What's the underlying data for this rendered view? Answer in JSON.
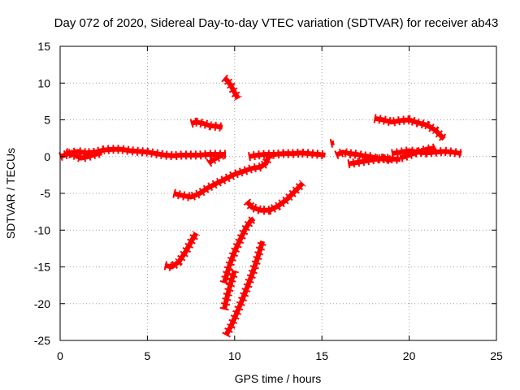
{
  "chart_data": {
    "type": "scatter",
    "title": "Day 072 of 2020, Sidereal Day-to-day VTEC variation (SDTVAR) for receiver ab43",
    "xlabel": "GPS time / hours",
    "ylabel": "SDTVAR / TECUs",
    "xlim": [
      0,
      25
    ],
    "ylim": [
      -25,
      15
    ],
    "xticks": [
      0,
      5,
      10,
      15,
      20,
      25
    ],
    "yticks": [
      -25,
      -20,
      -15,
      -10,
      -5,
      0,
      5,
      10,
      15
    ],
    "grid": true,
    "legend": "none",
    "color": "#ff0000",
    "series": [
      {
        "x": [
          0.0,
          0.5,
          1.0,
          1.5,
          2.0,
          2.5,
          3.0,
          3.5,
          4.0,
          4.5,
          5.0,
          5.5,
          6.0,
          6.5,
          7.0,
          7.5,
          8.0,
          8.5,
          9.0,
          9.5
        ],
        "y": [
          0.0,
          0.4,
          0.7,
          0.5,
          0.6,
          0.9,
          1.0,
          1.0,
          0.8,
          0.7,
          0.6,
          0.4,
          0.2,
          0.1,
          0.2,
          0.2,
          0.2,
          0.3,
          0.3,
          0.3
        ]
      },
      {
        "x": [
          0.3,
          0.8,
          1.2,
          1.6,
          2.0,
          2.4
        ],
        "y": [
          0.6,
          0.2,
          -0.2,
          0.0,
          0.3,
          0.5
        ]
      },
      {
        "x": [
          8.5,
          8.8,
          9.1,
          9.4
        ],
        "y": [
          -0.9,
          -0.4,
          0.0,
          0.3
        ]
      },
      {
        "x": [
          7.5,
          7.8,
          8.2,
          8.6,
          9.0,
          9.3
        ],
        "y": [
          4.5,
          4.7,
          4.5,
          4.2,
          4.1,
          4.0
        ]
      },
      {
        "x": [
          9.4,
          9.6,
          9.8,
          10.0,
          10.2
        ],
        "y": [
          10.7,
          10.3,
          9.6,
          8.7,
          7.9
        ]
      },
      {
        "x": [
          6.5,
          7.0,
          7.5,
          8.0,
          8.5,
          9.0,
          9.5,
          10.0,
          10.5,
          11.0,
          11.5,
          11.8,
          12.0
        ],
        "y": [
          -5.0,
          -5.3,
          -5.5,
          -5.0,
          -4.2,
          -3.6,
          -3.0,
          -2.4,
          -2.0,
          -1.6,
          -1.4,
          -0.9,
          0.3
        ]
      },
      {
        "x": [
          10.7,
          11.0,
          11.5,
          12.0,
          12.5,
          13.0,
          13.5,
          13.9
        ],
        "y": [
          -6.1,
          -6.9,
          -7.3,
          -7.3,
          -6.7,
          -5.8,
          -4.6,
          -3.6
        ]
      },
      {
        "x": [
          6.0,
          6.4,
          6.8,
          7.2,
          7.6,
          7.8
        ],
        "y": [
          -14.8,
          -15.0,
          -14.3,
          -12.9,
          -11.2,
          -10.4
        ]
      },
      {
        "x": [
          9.4,
          9.7,
          10.0,
          10.3,
          10.6,
          10.9,
          11.1
        ],
        "y": [
          -17.2,
          -14.8,
          -12.9,
          -11.4,
          -9.9,
          -8.8,
          -8.4
        ]
      },
      {
        "x": [
          9.4,
          9.6,
          9.8,
          10.0
        ],
        "y": [
          -20.8,
          -18.8,
          -17.0,
          -15.5
        ]
      },
      {
        "x": [
          9.5,
          9.8,
          10.1,
          10.4,
          10.7,
          11.0,
          11.3,
          11.6
        ],
        "y": [
          -24.3,
          -23.0,
          -21.4,
          -19.7,
          -17.9,
          -16.0,
          -13.9,
          -11.5
        ]
      },
      {
        "x": [
          10.8,
          11.3,
          11.8,
          12.3,
          12.8,
          13.3,
          13.8,
          14.3,
          14.8,
          15.2
        ],
        "y": [
          0.0,
          0.2,
          0.3,
          0.3,
          0.4,
          0.4,
          0.5,
          0.4,
          0.3,
          0.2
        ]
      },
      {
        "x": [
          15.8,
          16.2,
          16.6,
          17.0,
          17.4,
          17.8,
          18.2,
          18.6,
          19.0
        ],
        "y": [
          0.2,
          0.6,
          0.4,
          0.3,
          0.1,
          0.0,
          -0.3,
          -0.3,
          -0.5
        ]
      },
      {
        "x": [
          16.5,
          17.0,
          17.5,
          18.0,
          18.5,
          19.0,
          19.5
        ],
        "y": [
          -1.0,
          -0.8,
          -0.6,
          -0.4,
          -0.2,
          -0.3,
          -0.4
        ]
      },
      {
        "x": [
          19.0,
          19.5,
          20.0,
          20.5,
          21.0,
          21.5,
          22.0,
          22.5,
          23.0
        ],
        "y": [
          0.4,
          0.6,
          0.8,
          0.6,
          0.5,
          0.6,
          0.7,
          0.6,
          0.4
        ]
      },
      {
        "x": [
          19.5,
          20.0,
          20.5,
          21.0,
          21.5
        ],
        "y": [
          -0.2,
          0.2,
          0.6,
          1.0,
          1.2
        ]
      },
      {
        "x": [
          18.0,
          18.5,
          19.0,
          19.5,
          20.0,
          20.5,
          21.0,
          21.5,
          22.0
        ],
        "y": [
          5.2,
          5.0,
          4.7,
          4.9,
          5.0,
          4.6,
          4.3,
          3.6,
          2.4
        ]
      },
      {
        "x": [
          15.5,
          15.7
        ],
        "y": [
          1.8,
          1.9
        ]
      }
    ]
  }
}
